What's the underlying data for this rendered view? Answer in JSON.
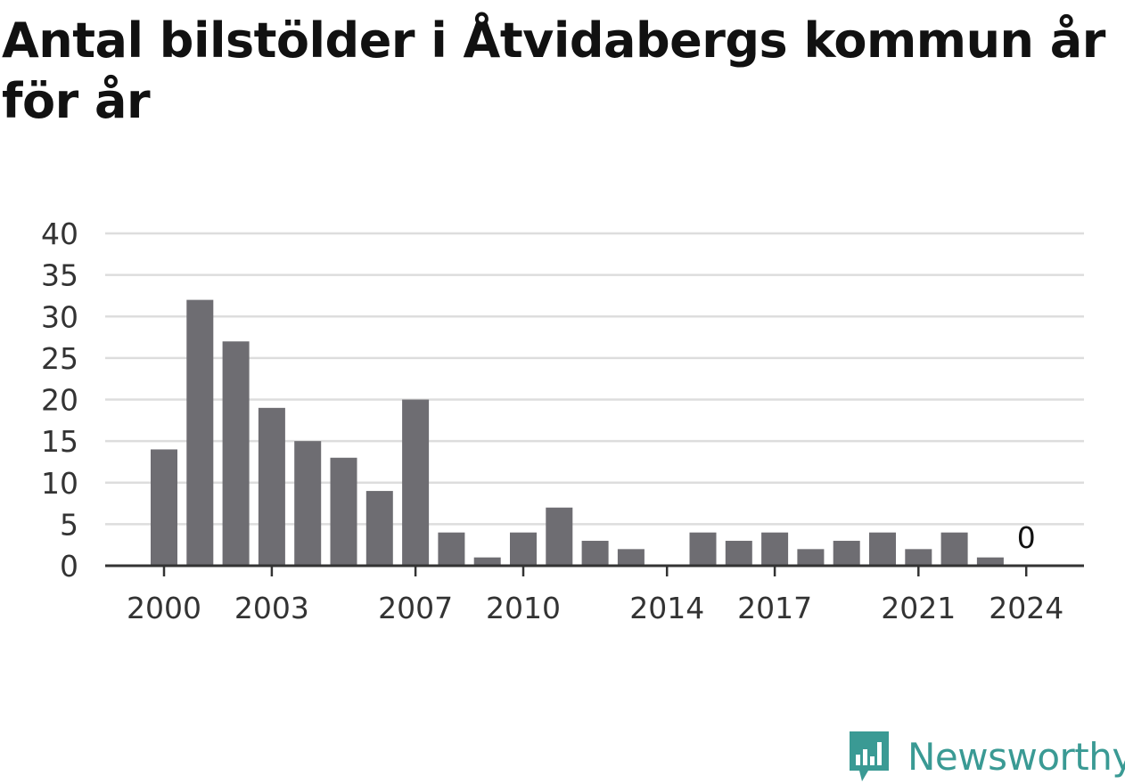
{
  "title": "Antal bilstölder i Åtvidabergs kommun år för år",
  "brand": {
    "name": "Newsworthy",
    "icon": "newsworthy-logo-icon",
    "color": "#3a9a94"
  },
  "chart_data": {
    "type": "bar",
    "x": [
      2000,
      2001,
      2002,
      2003,
      2004,
      2005,
      2006,
      2007,
      2008,
      2009,
      2010,
      2011,
      2012,
      2013,
      2014,
      2015,
      2016,
      2017,
      2018,
      2019,
      2020,
      2021,
      2022,
      2023,
      2024
    ],
    "values": [
      14,
      32,
      27,
      19,
      15,
      13,
      9,
      20,
      4,
      1,
      4,
      7,
      3,
      2,
      0,
      4,
      3,
      4,
      2,
      3,
      4,
      2,
      4,
      1,
      0
    ],
    "x_tick_labels": [
      "2000",
      "2003",
      "2007",
      "2010",
      "2014",
      "2017",
      "2021",
      "2024"
    ],
    "y_ticks": [
      0,
      5,
      10,
      15,
      20,
      25,
      30,
      35,
      40
    ],
    "ylim": [
      0,
      40
    ],
    "grid": true,
    "annotations": [
      {
        "x": 2024,
        "text": "0"
      }
    ],
    "bar_color": "#6e6d72",
    "grid_color": "#dddddd",
    "axis_color": "#333333"
  }
}
